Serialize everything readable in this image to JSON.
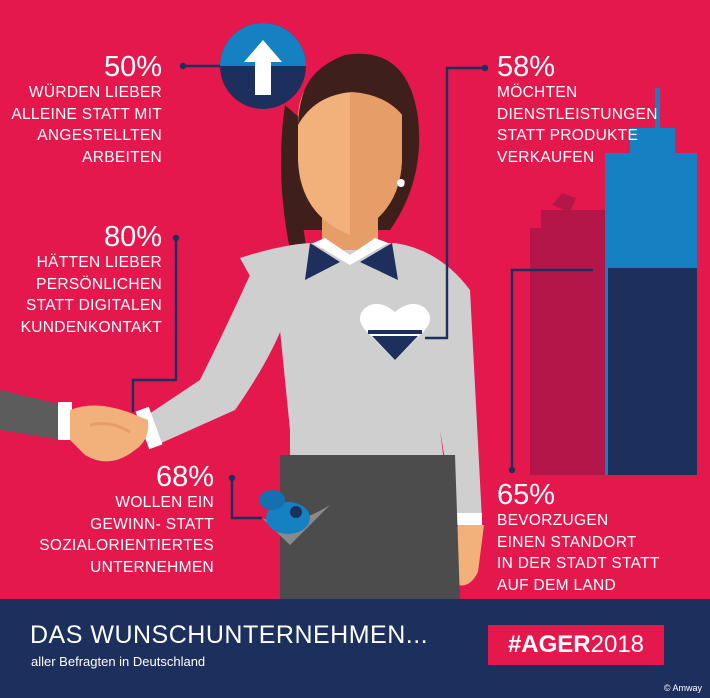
{
  "colors": {
    "background": "#e5184e",
    "navy": "#1c2f5d",
    "blue": "#1580c2",
    "shirt": "#cfcfcf",
    "skin": "#f2b07a"
  },
  "stats": {
    "s50": {
      "pct": "50%",
      "text": "WÜRDEN LIEBER\nALLEINE STATT MIT\nANGESTELLTEN\nARBEITEN"
    },
    "s80": {
      "pct": "80%",
      "text": "HÄTTEN LIEBER\nPERSÖNLICHEN\nSTATT DIGITALEN\nKUNDENKONTAKT"
    },
    "s68": {
      "pct": "68%",
      "text": "WOLLEN EIN\nGEWINN- STATT\nSOZIALORIENTIERTES\nUNTERNEHMEN"
    },
    "s58": {
      "pct": "58%",
      "text": "MÖCHTEN\nDIENSTLEISTUNGEN\nSTATT PRODUKTE\nVERKAUFEN"
    },
    "s65": {
      "pct": "65%",
      "text": "BEVORZUGEN\nEINEN STANDORT\nIN DER STADT STATT\nAUF DEM LAND"
    }
  },
  "icons": {
    "top": "arrow-up-icon",
    "heart": "heart-icon",
    "piggy": "piggy-bank-icon",
    "city": "skyscraper-icon",
    "hands": "handshake-icon"
  },
  "footer": {
    "title": "DAS WUNSCHUNTERNEHMEN...",
    "subtitle": "aller Befragten in Deutschland",
    "hashtag_bold": "#AGER",
    "hashtag_year": "2018",
    "copyright": "© Amway"
  }
}
